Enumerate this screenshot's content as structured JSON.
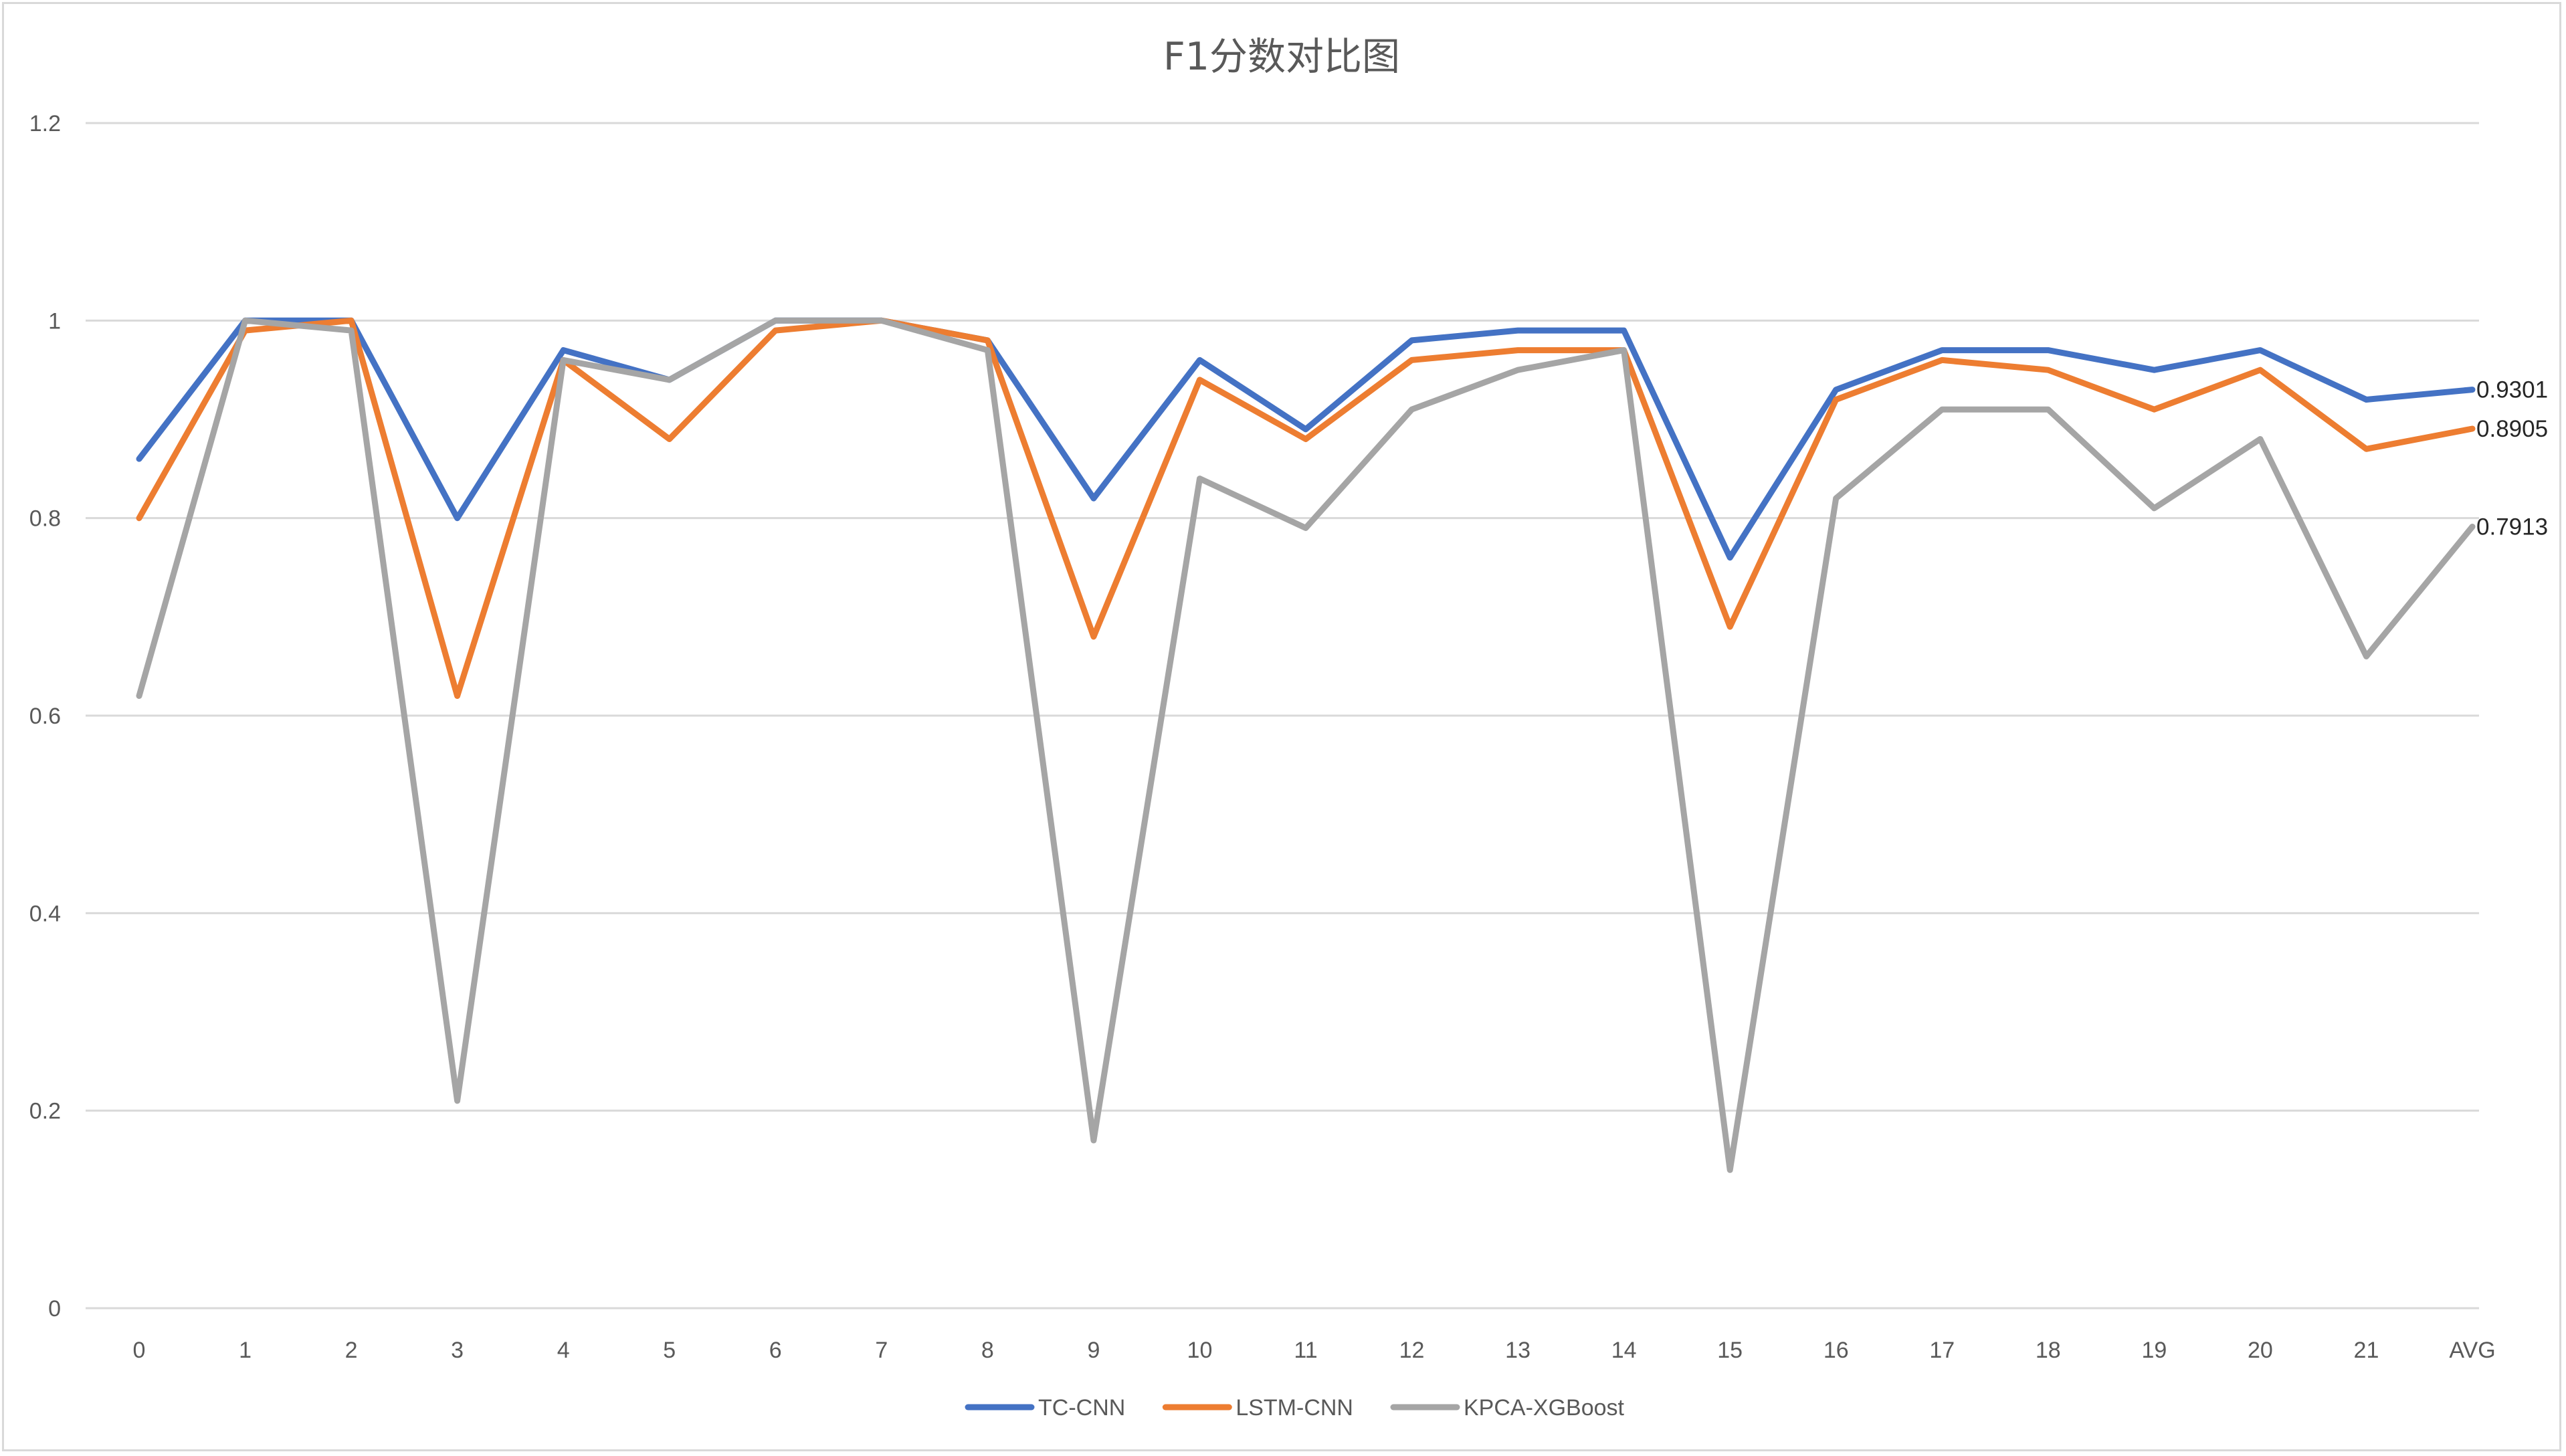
{
  "chart_data": {
    "type": "line",
    "title": "F1分数对比图",
    "xlabel": "",
    "ylabel": "",
    "categories": [
      "0",
      "1",
      "2",
      "3",
      "4",
      "5",
      "6",
      "7",
      "8",
      "9",
      "10",
      "11",
      "12",
      "13",
      "14",
      "15",
      "16",
      "17",
      "18",
      "19",
      "20",
      "21",
      "AVG"
    ],
    "ylim": [
      0,
      1.2
    ],
    "yticks": [
      0,
      0.2,
      0.4,
      0.6,
      0.8,
      1,
      1.2
    ],
    "ytick_labels": [
      "0",
      "0.2",
      "0.4",
      "0.6",
      "0.8",
      "1",
      "1.2"
    ],
    "grid": true,
    "legend_position": "bottom",
    "series": [
      {
        "name": "TC-CNN",
        "color": "#4472C4",
        "values": [
          0.86,
          1.0,
          1.0,
          0.8,
          0.97,
          0.94,
          1.0,
          1.0,
          0.98,
          0.82,
          0.96,
          0.89,
          0.98,
          0.99,
          0.99,
          0.76,
          0.93,
          0.97,
          0.97,
          0.95,
          0.97,
          0.92,
          0.9301
        ],
        "end_label": "0.9301"
      },
      {
        "name": "LSTM-CNN",
        "color": "#ED7D31",
        "values": [
          0.8,
          0.99,
          1.0,
          0.62,
          0.96,
          0.88,
          0.99,
          1.0,
          0.98,
          0.68,
          0.94,
          0.88,
          0.96,
          0.97,
          0.97,
          0.69,
          0.92,
          0.96,
          0.95,
          0.91,
          0.95,
          0.87,
          0.8905
        ],
        "end_label": "0.8905"
      },
      {
        "name": "KPCA-XGBoost",
        "color": "#A5A5A5",
        "values": [
          0.62,
          1.0,
          0.99,
          0.21,
          0.96,
          0.94,
          1.0,
          1.0,
          0.97,
          0.17,
          0.84,
          0.79,
          0.91,
          0.95,
          0.97,
          0.14,
          0.82,
          0.91,
          0.91,
          0.81,
          0.88,
          0.66,
          0.7913
        ],
        "end_label": "0.7913"
      }
    ]
  }
}
